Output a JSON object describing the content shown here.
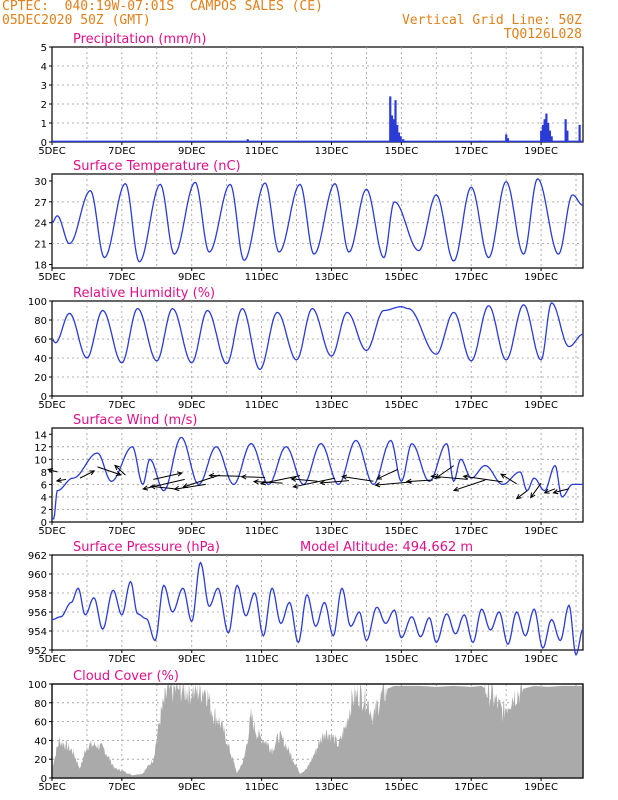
{
  "header": {
    "source": "CPTEC:",
    "location": "040:19W-07:01S  CAMPOS SALES (CE)",
    "date": "05DEC2020 50Z (GMT)",
    "grid_note": "Vertical Grid Line: 50Z",
    "model": "TQ0126L028"
  },
  "colors": {
    "line": "#2a3bd6",
    "title": "#e0108a",
    "header": "#e0801a",
    "cloud": "#aaaaaa",
    "arrow": "#000000"
  },
  "x_labels": [
    "5DEC",
    "7DEC",
    "9DEC",
    "11DEC",
    "13DEC",
    "15DEC",
    "17DEC",
    "19DEC"
  ],
  "chart_data": [
    {
      "id": "precip",
      "type": "bar",
      "title": "Precipitation (mm/h)",
      "ylim": [
        0,
        5
      ],
      "yticks": [
        0,
        1,
        2,
        3,
        4,
        5
      ],
      "x_day_range": [
        5,
        20.2
      ],
      "bars": [
        [
          5.4,
          0.05
        ],
        [
          6.0,
          0.03
        ],
        [
          7.2,
          0.04
        ],
        [
          10.6,
          0.15
        ],
        [
          14.68,
          2.4
        ],
        [
          14.73,
          1.4
        ],
        [
          14.78,
          1.2
        ],
        [
          14.83,
          2.2
        ],
        [
          14.88,
          0.9
        ],
        [
          14.93,
          0.5
        ],
        [
          14.98,
          0.3
        ],
        [
          15.05,
          0.15
        ],
        [
          15.13,
          0.05
        ],
        [
          17.25,
          0.08
        ],
        [
          18.0,
          0.4
        ],
        [
          18.05,
          0.2
        ],
        [
          19.0,
          0.6
        ],
        [
          19.05,
          0.9
        ],
        [
          19.1,
          1.2
        ],
        [
          19.15,
          1.5
        ],
        [
          19.2,
          1.0
        ],
        [
          19.25,
          0.6
        ],
        [
          19.3,
          0.3
        ],
        [
          19.7,
          1.2
        ],
        [
          19.75,
          0.6
        ],
        [
          20.1,
          0.9
        ]
      ]
    },
    {
      "id": "temp",
      "type": "line",
      "title": "Surface Temperature (nC)",
      "ylim": [
        17.5,
        31
      ],
      "yticks": [
        18,
        21,
        24,
        27,
        30
      ],
      "x_day_range": [
        5,
        20.2
      ],
      "maxima": [
        [
          5.15,
          25.0
        ],
        [
          6.1,
          28.6
        ],
        [
          7.1,
          29.6
        ],
        [
          8.1,
          29.5
        ],
        [
          9.1,
          29.8
        ],
        [
          10.1,
          29.5
        ],
        [
          11.1,
          29.7
        ],
        [
          12.1,
          29.5
        ],
        [
          13.1,
          29.6
        ],
        [
          14.0,
          28.8
        ],
        [
          14.8,
          27.0
        ],
        [
          16.0,
          28.0
        ],
        [
          17.0,
          29.1
        ],
        [
          18.0,
          29.9
        ],
        [
          18.9,
          30.3
        ],
        [
          19.9,
          28.0
        ]
      ],
      "minima": [
        [
          5.5,
          21.0
        ],
        [
          6.5,
          19.0
        ],
        [
          7.5,
          18.4
        ],
        [
          8.5,
          19.5
        ],
        [
          9.5,
          19.8
        ],
        [
          10.5,
          18.6
        ],
        [
          11.5,
          19.8
        ],
        [
          12.5,
          19.5
        ],
        [
          13.5,
          19.8
        ],
        [
          14.5,
          19.0
        ],
        [
          15.5,
          20.0
        ],
        [
          16.5,
          18.5
        ],
        [
          17.5,
          19.0
        ],
        [
          18.5,
          19.5
        ],
        [
          19.5,
          19.5
        ]
      ],
      "start": 24.0,
      "end": 26.5
    },
    {
      "id": "rh",
      "type": "line",
      "title": "Relative Humidity (%)",
      "ylim": [
        0,
        100
      ],
      "yticks": [
        0,
        20,
        40,
        60,
        80,
        100
      ],
      "x_day_range": [
        5,
        20.2
      ],
      "maxima": [
        [
          5.5,
          87
        ],
        [
          6.45,
          90
        ],
        [
          7.45,
          92
        ],
        [
          8.45,
          92
        ],
        [
          9.45,
          90
        ],
        [
          10.45,
          92
        ],
        [
          11.45,
          88
        ],
        [
          12.45,
          92
        ],
        [
          13.45,
          88
        ],
        [
          14.5,
          90
        ],
        [
          15.0,
          94
        ],
        [
          16.5,
          88
        ],
        [
          17.5,
          95
        ],
        [
          18.5,
          96
        ],
        [
          19.3,
          98
        ]
      ],
      "minima": [
        [
          5.1,
          56
        ],
        [
          6.0,
          40
        ],
        [
          7.0,
          35
        ],
        [
          8.0,
          37
        ],
        [
          9.0,
          35
        ],
        [
          10.0,
          34
        ],
        [
          10.95,
          28
        ],
        [
          12.0,
          38
        ],
        [
          13.0,
          42
        ],
        [
          14.0,
          48
        ],
        [
          15.2,
          92
        ],
        [
          16.0,
          44
        ],
        [
          17.0,
          37
        ],
        [
          18.0,
          38
        ],
        [
          19.0,
          38
        ],
        [
          19.8,
          52
        ]
      ],
      "start": 60,
      "end": 65
    },
    {
      "id": "wind",
      "type": "line",
      "title": "Surface Wind (m/s)",
      "ylim": [
        0,
        15
      ],
      "yticks": [
        0,
        2,
        4,
        6,
        8,
        10,
        12,
        14
      ],
      "x_day_range": [
        5,
        20.2
      ],
      "maxima": [
        [
          5.15,
          5
        ],
        [
          6.3,
          11
        ],
        [
          7.3,
          12
        ],
        [
          7.8,
          10
        ],
        [
          8.7,
          13.5
        ],
        [
          9.7,
          12
        ],
        [
          10.7,
          12.5
        ],
        [
          11.7,
          12
        ],
        [
          12.7,
          12.5
        ],
        [
          13.7,
          13
        ],
        [
          14.7,
          13
        ],
        [
          15.3,
          12.5
        ],
        [
          16.3,
          12.5
        ],
        [
          16.7,
          10
        ],
        [
          17.4,
          9
        ],
        [
          18.4,
          8
        ],
        [
          18.8,
          7
        ],
        [
          19.4,
          9
        ],
        [
          19.9,
          6
        ]
      ],
      "minima": [
        [
          5.05,
          0.5
        ],
        [
          5.6,
          7
        ],
        [
          6.7,
          6.5
        ],
        [
          7.6,
          6
        ],
        [
          8.2,
          5
        ],
        [
          9.2,
          6
        ],
        [
          10.2,
          6
        ],
        [
          11.2,
          6
        ],
        [
          12.2,
          6
        ],
        [
          13.2,
          6
        ],
        [
          14.2,
          6
        ],
        [
          15.0,
          6.5
        ],
        [
          15.8,
          6.5
        ],
        [
          16.5,
          6.5
        ],
        [
          17.0,
          7
        ],
        [
          17.9,
          6
        ],
        [
          18.6,
          5
        ],
        [
          19.1,
          5
        ],
        [
          19.6,
          4
        ]
      ],
      "start": 0.5,
      "end": 6,
      "arrows": [
        [
          5.15,
          8,
          -0.35,
          0.3
        ],
        [
          5.4,
          6.8,
          -0.35,
          -0.2
        ],
        [
          5.8,
          7.0,
          0.55,
          0.9
        ],
        [
          6.3,
          8.8,
          0.9,
          -1.0
        ],
        [
          7.1,
          7.5,
          -0.4,
          1.2
        ],
        [
          7.9,
          6.8,
          1.1,
          0.8
        ],
        [
          8.5,
          5.3,
          -0.9,
          0.3
        ],
        [
          8.8,
          6.8,
          -1.6,
          -1.2
        ],
        [
          9.4,
          6.0,
          -1.2,
          -0.6
        ],
        [
          9.8,
          7.5,
          -1.4,
          -1.5
        ],
        [
          10.4,
          7.3,
          -1.2,
          0.1
        ],
        [
          11.1,
          7.1,
          -0.9,
          0.1
        ],
        [
          11.6,
          6.2,
          -1.1,
          0.2
        ],
        [
          12.1,
          7.4,
          -1.5,
          -1.0
        ],
        [
          12.6,
          6.5,
          -1.0,
          0.3
        ],
        [
          13.1,
          7.0,
          -1.6,
          -1.1
        ],
        [
          13.5,
          6.6,
          -1.1,
          -0.3
        ],
        [
          14.2,
          6.5,
          -1.2,
          0.6
        ],
        [
          14.9,
          8.4,
          -0.8,
          -1.2
        ],
        [
          15.3,
          6.4,
          -1.4,
          -0.4
        ],
        [
          15.9,
          6.7,
          -1.0,
          -0.2
        ],
        [
          16.5,
          9.0,
          -0.7,
          -1.6
        ],
        [
          16.9,
          6.8,
          -1.4,
          0.4
        ],
        [
          17.4,
          6.7,
          -1.2,
          -1.3
        ],
        [
          17.9,
          6.4,
          -1.5,
          0.7
        ],
        [
          18.3,
          6.1,
          -0.6,
          1.2
        ],
        [
          18.6,
          5.0,
          -0.4,
          -1.0
        ],
        [
          19.0,
          6.2,
          -0.4,
          -1.8
        ],
        [
          19.4,
          5.3,
          -0.4,
          -0.5
        ],
        [
          19.8,
          5.3,
          -0.6,
          -0.5
        ]
      ]
    },
    {
      "id": "pres",
      "type": "line",
      "title": "Surface Pressure (hPa)",
      "ylim": [
        952,
        962
      ],
      "yticks": [
        952,
        954,
        956,
        958,
        960,
        962
      ],
      "x_day_range": [
        5,
        20.2
      ],
      "extra_label": "Model Altitude: 494.662 m",
      "series": [
        [
          5,
          955.2
        ],
        [
          5.25,
          955.5
        ],
        [
          5.55,
          957
        ],
        [
          5.75,
          958.5
        ],
        [
          5.95,
          955.7
        ],
        [
          6.2,
          957.5
        ],
        [
          6.45,
          954.2
        ],
        [
          6.75,
          958.3
        ],
        [
          7.0,
          955.7
        ],
        [
          7.25,
          959.2
        ],
        [
          7.45,
          955.8
        ],
        [
          7.7,
          955.3
        ],
        [
          7.95,
          953
        ],
        [
          8.2,
          958.8
        ],
        [
          8.45,
          956
        ],
        [
          8.75,
          958.5
        ],
        [
          9.0,
          955
        ],
        [
          9.25,
          961.2
        ],
        [
          9.5,
          956.6
        ],
        [
          9.75,
          958.5
        ],
        [
          10.05,
          953.8
        ],
        [
          10.3,
          958.8
        ],
        [
          10.55,
          955.6
        ],
        [
          10.8,
          958
        ],
        [
          11.05,
          953.5
        ],
        [
          11.3,
          958.5
        ],
        [
          11.55,
          954.8
        ],
        [
          11.8,
          957
        ],
        [
          12.05,
          952.8
        ],
        [
          12.3,
          957.8
        ],
        [
          12.55,
          954.5
        ],
        [
          12.8,
          957
        ],
        [
          13.05,
          953.5
        ],
        [
          13.3,
          958.5
        ],
        [
          13.55,
          954.5
        ],
        [
          13.8,
          956
        ],
        [
          14.0,
          953
        ],
        [
          14.3,
          956.5
        ],
        [
          14.55,
          954.8
        ],
        [
          14.8,
          956.2
        ],
        [
          15.0,
          953.3
        ],
        [
          15.3,
          955.5
        ],
        [
          15.55,
          953.4
        ],
        [
          15.8,
          955.4
        ],
        [
          16.0,
          952.8
        ],
        [
          16.3,
          955.8
        ],
        [
          16.55,
          953.7
        ],
        [
          16.8,
          955.7
        ],
        [
          17.05,
          952.8
        ],
        [
          17.3,
          956.3
        ],
        [
          17.55,
          954.1
        ],
        [
          17.8,
          956
        ],
        [
          18.05,
          952.6
        ],
        [
          18.3,
          956
        ],
        [
          18.55,
          953.5
        ],
        [
          18.8,
          956.3
        ],
        [
          19.05,
          952.2
        ],
        [
          19.3,
          955.2
        ],
        [
          19.55,
          953
        ],
        [
          19.8,
          956.7
        ],
        [
          20.0,
          951.5
        ],
        [
          20.2,
          954.2
        ]
      ]
    },
    {
      "id": "cloud",
      "type": "area",
      "title": "Cloud Cover (%)",
      "ylim": [
        0,
        100
      ],
      "yticks": [
        0,
        20,
        40,
        60,
        80,
        100
      ],
      "x_day_range": [
        5,
        20.2
      ],
      "series": [
        [
          5,
          10
        ],
        [
          5.2,
          40
        ],
        [
          5.4,
          35
        ],
        [
          5.6,
          28
        ],
        [
          5.8,
          10
        ],
        [
          6.0,
          35
        ],
        [
          6.3,
          35
        ],
        [
          6.5,
          30
        ],
        [
          6.8,
          10
        ],
        [
          7.0,
          8
        ],
        [
          7.3,
          3
        ],
        [
          7.6,
          5
        ],
        [
          7.9,
          20
        ],
        [
          8.1,
          65
        ],
        [
          8.3,
          92
        ],
        [
          8.6,
          95
        ],
        [
          8.9,
          93
        ],
        [
          9.1,
          92
        ],
        [
          9.4,
          95
        ],
        [
          9.6,
          70
        ],
        [
          9.8,
          60
        ],
        [
          10.0,
          40
        ],
        [
          10.3,
          5
        ],
        [
          10.5,
          20
        ],
        [
          10.7,
          65
        ],
        [
          10.9,
          45
        ],
        [
          11.1,
          40
        ],
        [
          11.3,
          30
        ],
        [
          11.5,
          45
        ],
        [
          11.7,
          35
        ],
        [
          11.9,
          20
        ],
        [
          12.1,
          5
        ],
        [
          12.3,
          10
        ],
        [
          12.5,
          25
        ],
        [
          12.8,
          50
        ],
        [
          13.0,
          45
        ],
        [
          13.2,
          35
        ],
        [
          13.4,
          55
        ],
        [
          13.6,
          85
        ],
        [
          13.8,
          90
        ],
        [
          14.0,
          85
        ],
        [
          14.2,
          65
        ],
        [
          14.4,
          85
        ],
        [
          14.6,
          95
        ],
        [
          14.8,
          98
        ],
        [
          15.0,
          98
        ],
        [
          15.5,
          98
        ],
        [
          16.0,
          97
        ],
        [
          16.5,
          98
        ],
        [
          17.0,
          97
        ],
        [
          17.3,
          98
        ],
        [
          17.6,
          88
        ],
        [
          17.9,
          70
        ],
        [
          18.2,
          88
        ],
        [
          18.5,
          95
        ],
        [
          18.8,
          98
        ],
        [
          19.2,
          97
        ],
        [
          19.6,
          98
        ],
        [
          20.2,
          98
        ]
      ]
    }
  ]
}
